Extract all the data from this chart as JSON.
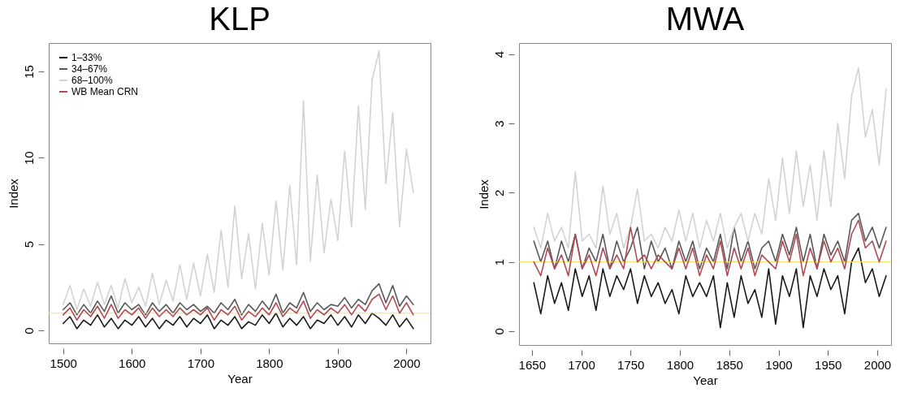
{
  "chart_data": [
    {
      "type": "line",
      "title": "KLP",
      "xlabel": "Year",
      "ylabel": "Index",
      "legend": "top left",
      "x": [
        1500,
        1510,
        1520,
        1530,
        1540,
        1550,
        1560,
        1570,
        1580,
        1590,
        1600,
        1610,
        1620,
        1630,
        1640,
        1650,
        1660,
        1670,
        1680,
        1690,
        1700,
        1710,
        1720,
        1730,
        1740,
        1750,
        1760,
        1770,
        1780,
        1790,
        1800,
        1810,
        1820,
        1830,
        1840,
        1850,
        1860,
        1870,
        1880,
        1890,
        1900,
        1910,
        1920,
        1930,
        1940,
        1950,
        1960,
        1970,
        1980,
        1990,
        2000,
        2010
      ],
      "xlim": [
        1479,
        2035
      ],
      "xticks": [
        1500,
        1600,
        1700,
        1800,
        1900,
        2000
      ],
      "ylim": [
        -0.75,
        16.64
      ],
      "yticks": [
        0,
        5,
        10,
        15
      ],
      "ref_lines": [
        {
          "axis": "y",
          "value": 1,
          "color": "#f5e26a"
        }
      ],
      "series": [
        {
          "name": "1–33%",
          "color": "#1a1a1a",
          "values": [
            0.4,
            0.8,
            0.1,
            0.6,
            0.3,
            0.9,
            0.2,
            0.7,
            0.1,
            0.6,
            0.3,
            0.8,
            0.2,
            0.7,
            0.1,
            0.6,
            0.3,
            0.8,
            0.2,
            0.7,
            0.4,
            0.9,
            0.1,
            0.6,
            0.3,
            0.8,
            0.1,
            0.5,
            0.3,
            0.9,
            0.4,
            1.0,
            0.2,
            0.7,
            0.3,
            0.8,
            0.1,
            0.6,
            0.4,
            0.9,
            0.3,
            0.8,
            0.2,
            0.9,
            0.4,
            1.0,
            0.7,
            0.3,
            0.9,
            0.2,
            0.7,
            0.1
          ]
        },
        {
          "name": "34–67%",
          "color": "#595959",
          "values": [
            1.2,
            1.6,
            0.9,
            1.5,
            1.0,
            1.7,
            1.1,
            2.0,
            1.0,
            1.6,
            1.2,
            1.5,
            0.9,
            1.6,
            1.1,
            1.5,
            1.0,
            1.6,
            1.2,
            1.5,
            1.1,
            1.4,
            1.0,
            1.6,
            1.2,
            1.8,
            0.9,
            1.5,
            1.1,
            1.7,
            1.2,
            2.1,
            1.0,
            1.6,
            1.3,
            2.2,
            1.1,
            1.6,
            1.2,
            1.5,
            1.4,
            1.9,
            1.3,
            1.8,
            1.5,
            2.3,
            2.7,
            1.6,
            2.6,
            1.4,
            2.0,
            1.5
          ]
        },
        {
          "name": "68–100%",
          "color": "#d3d3d3",
          "values": [
            1.5,
            2.6,
            1.2,
            2.4,
            1.4,
            2.8,
            1.5,
            2.6,
            1.3,
            3.0,
            1.6,
            2.5,
            1.4,
            3.3,
            1.5,
            2.9,
            1.7,
            3.8,
            1.8,
            3.9,
            2.0,
            4.4,
            2.2,
            5.8,
            2.5,
            7.2,
            3.0,
            5.6,
            2.4,
            6.2,
            3.2,
            7.5,
            3.5,
            8.4,
            3.8,
            13.3,
            4.0,
            9.0,
            4.5,
            7.6,
            5.2,
            10.4,
            6.0,
            13.0,
            7.0,
            14.5,
            16.2,
            8.5,
            12.6,
            6.0,
            10.5,
            8.0
          ]
        },
        {
          "name": "WB Mean CRN",
          "color": "#b04a55",
          "values": [
            0.9,
            1.3,
            0.6,
            1.2,
            0.8,
            1.4,
            0.7,
            1.5,
            0.7,
            1.2,
            0.9,
            1.3,
            0.7,
            1.3,
            0.8,
            1.2,
            0.8,
            1.3,
            0.9,
            1.2,
            0.9,
            1.3,
            0.6,
            1.2,
            0.9,
            1.4,
            0.6,
            1.1,
            0.8,
            1.3,
            0.9,
            1.6,
            0.8,
            1.3,
            1.0,
            1.7,
            0.7,
            1.2,
            0.9,
            1.3,
            1.0,
            1.5,
            0.9,
            1.5,
            1.1,
            1.8,
            2.1,
            1.2,
            2.0,
            1.0,
            1.6,
            0.9
          ]
        }
      ]
    },
    {
      "type": "line",
      "title": "MWA",
      "xlabel": "Year",
      "ylabel": "Index",
      "x": [
        1652,
        1659,
        1666,
        1673,
        1680,
        1687,
        1694,
        1701,
        1708,
        1715,
        1722,
        1729,
        1736,
        1743,
        1750,
        1757,
        1764,
        1771,
        1778,
        1785,
        1792,
        1799,
        1806,
        1813,
        1820,
        1827,
        1834,
        1841,
        1848,
        1855,
        1862,
        1869,
        1876,
        1883,
        1890,
        1897,
        1904,
        1911,
        1918,
        1925,
        1932,
        1939,
        1946,
        1953,
        1960,
        1967,
        1974,
        1981,
        1988,
        1995,
        2002,
        2009
      ],
      "xlim": [
        1637,
        2014
      ],
      "xticks": [
        1650,
        1700,
        1750,
        1800,
        1850,
        1900,
        1950,
        2000
      ],
      "ylim": [
        -0.2,
        4.16
      ],
      "yticks": [
        0,
        1,
        2,
        3,
        4
      ],
      "ref_lines": [
        {
          "axis": "y",
          "value": 1,
          "color": "#f5e26a"
        }
      ],
      "series": [
        {
          "color": "#1a1a1a",
          "values": [
            0.7,
            0.25,
            0.8,
            0.4,
            0.7,
            0.3,
            0.9,
            0.5,
            0.8,
            0.3,
            0.9,
            0.5,
            0.8,
            0.6,
            0.9,
            0.4,
            0.8,
            0.5,
            0.7,
            0.4,
            0.6,
            0.25,
            0.8,
            0.5,
            0.7,
            0.5,
            0.8,
            0.05,
            0.7,
            0.2,
            0.8,
            0.4,
            0.6,
            0.2,
            0.9,
            0.1,
            0.8,
            0.5,
            0.9,
            0.05,
            0.8,
            0.5,
            0.9,
            0.6,
            0.8,
            0.25,
            1.0,
            1.2,
            0.7,
            0.9,
            0.5,
            0.8
          ]
        },
        {
          "color": "#595959",
          "values": [
            1.3,
            1.0,
            1.3,
            0.9,
            1.3,
            1.0,
            1.4,
            0.9,
            1.2,
            1.0,
            1.4,
            0.9,
            1.3,
            1.0,
            1.2,
            1.5,
            0.9,
            1.3,
            1.0,
            1.2,
            0.9,
            1.3,
            1.0,
            1.3,
            0.9,
            1.2,
            1.0,
            1.4,
            0.9,
            1.5,
            1.0,
            1.3,
            0.9,
            1.2,
            1.3,
            1.0,
            1.4,
            1.1,
            1.5,
            1.0,
            1.4,
            0.9,
            1.4,
            1.1,
            1.3,
            1.0,
            1.6,
            1.7,
            1.3,
            1.5,
            1.2,
            1.5
          ]
        },
        {
          "color": "#d3d3d3",
          "values": [
            1.5,
            1.2,
            1.7,
            1.3,
            1.5,
            1.2,
            2.3,
            1.3,
            1.4,
            1.2,
            2.1,
            1.4,
            1.7,
            1.2,
            1.5,
            2.05,
            1.3,
            1.4,
            1.2,
            1.5,
            1.3,
            1.75,
            1.3,
            1.7,
            1.2,
            1.6,
            1.3,
            1.7,
            1.2,
            1.5,
            1.7,
            1.3,
            1.7,
            1.4,
            2.2,
            1.6,
            2.5,
            1.7,
            2.6,
            1.8,
            2.4,
            1.6,
            2.6,
            1.8,
            3.0,
            2.2,
            3.4,
            3.8,
            2.8,
            3.2,
            2.4,
            3.5
          ]
        },
        {
          "color": "#b04a55",
          "values": [
            1.0,
            0.8,
            1.2,
            0.9,
            1.1,
            0.8,
            1.4,
            0.9,
            1.1,
            0.8,
            1.2,
            0.9,
            1.1,
            0.9,
            1.5,
            1.0,
            1.1,
            0.9,
            1.1,
            1.0,
            0.9,
            1.2,
            0.9,
            1.2,
            0.8,
            1.1,
            0.9,
            1.3,
            0.8,
            1.2,
            0.9,
            1.2,
            0.8,
            1.1,
            1.0,
            0.9,
            1.3,
            1.0,
            1.4,
            0.8,
            1.2,
            0.9,
            1.3,
            1.0,
            1.2,
            0.9,
            1.4,
            1.6,
            1.2,
            1.3,
            1.0,
            1.3
          ]
        }
      ]
    }
  ]
}
